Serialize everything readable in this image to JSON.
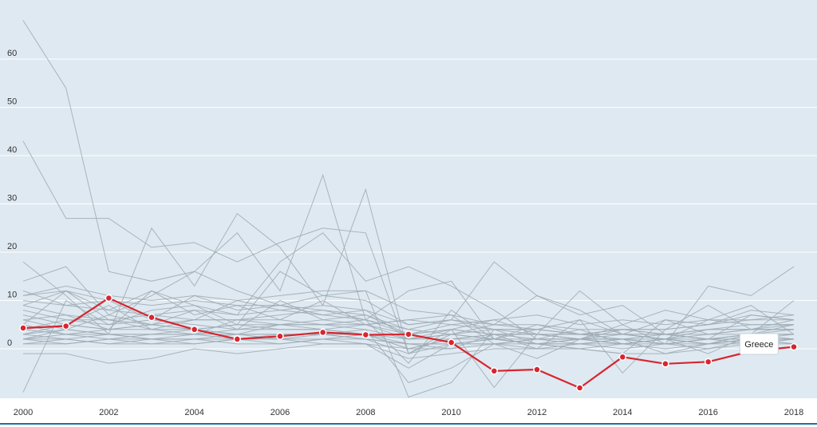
{
  "chart_data": {
    "type": "line",
    "title": "",
    "xlabel": "",
    "ylabel": "",
    "x": [
      2000,
      2001,
      2002,
      2003,
      2004,
      2005,
      2006,
      2007,
      2008,
      2009,
      2010,
      2011,
      2012,
      2013,
      2014,
      2015,
      2016,
      2017,
      2018
    ],
    "x_ticks": [
      "2000",
      "2002",
      "2004",
      "2006",
      "2008",
      "2010",
      "2012",
      "2014",
      "2016",
      "2018"
    ],
    "y_ticks": [
      "0",
      "10",
      "20",
      "30",
      "40",
      "50",
      "60"
    ],
    "ylim": [
      -11,
      72
    ],
    "grid": true,
    "highlight_series": {
      "name": "Greece",
      "values": [
        4.3,
        4.7,
        10.5,
        6.5,
        4.0,
        2.0,
        2.6,
        3.4,
        2.9,
        3.0,
        1.3,
        -4.6,
        -4.3,
        -8.1,
        -1.7,
        -3.1,
        -2.7,
        -0.5,
        0.4
      ]
    },
    "background_series": [
      {
        "values": [
          68,
          54,
          16,
          14,
          16,
          12,
          9,
          8,
          6,
          4,
          3,
          2,
          1,
          1,
          1,
          2,
          1,
          3,
          5
        ]
      },
      {
        "values": [
          43,
          27,
          27,
          21,
          22,
          18,
          22,
          25,
          24,
          -1,
          3,
          5,
          11,
          8,
          3,
          6,
          3,
          4,
          6
        ]
      },
      {
        "values": [
          18,
          11,
          3,
          25,
          13,
          28,
          21,
          9,
          33,
          -1,
          4,
          -8,
          3,
          12,
          5,
          1,
          13,
          11,
          17
        ]
      },
      {
        "values": [
          14,
          17,
          7,
          11,
          16,
          24,
          12,
          36,
          6,
          12,
          14,
          2,
          5,
          3,
          2,
          -1,
          1,
          3,
          10
        ]
      },
      {
        "values": [
          -9,
          10,
          5,
          8,
          9,
          7,
          18,
          24,
          14,
          17,
          13,
          8,
          2,
          4,
          1,
          2,
          6,
          9,
          3
        ]
      },
      {
        "values": [
          11,
          12,
          8,
          12,
          9,
          5,
          16,
          11,
          12,
          -10,
          -7,
          4,
          1,
          0,
          -1,
          6,
          5,
          8,
          7
        ]
      },
      {
        "values": [
          12,
          9,
          10,
          6,
          11,
          8,
          9,
          7,
          8,
          5,
          6,
          18,
          11,
          7,
          9,
          3,
          2,
          7,
          6
        ]
      },
      {
        "values": [
          9,
          7,
          4,
          12,
          7,
          9,
          6,
          10,
          5,
          6,
          7,
          1,
          -2,
          2,
          5,
          8,
          6,
          5,
          5
        ]
      },
      {
        "values": [
          7,
          5,
          9,
          4,
          6,
          10,
          8,
          7,
          6,
          -3,
          8,
          2,
          4,
          6,
          -5,
          4,
          9,
          4,
          4
        ]
      },
      {
        "values": [
          5,
          12,
          6,
          4,
          3,
          6,
          5,
          5,
          4,
          -7,
          -4,
          1,
          0,
          6,
          3,
          2,
          -1,
          3,
          2
        ]
      },
      {
        "values": [
          6,
          4,
          7,
          5,
          8,
          4,
          10,
          6,
          7,
          3,
          4,
          6,
          3,
          2,
          4,
          3,
          2,
          2,
          3
        ]
      },
      {
        "values": [
          3,
          2,
          3,
          2,
          2,
          3,
          2,
          2,
          3,
          0,
          2,
          2,
          2,
          1,
          2,
          1,
          2,
          2,
          2
        ]
      },
      {
        "values": [
          2,
          3,
          2,
          3,
          3,
          2,
          3,
          3,
          2,
          1,
          1,
          2,
          1,
          2,
          1,
          2,
          1,
          1,
          2
        ]
      },
      {
        "values": [
          1,
          2,
          1,
          2,
          1,
          2,
          2,
          1,
          1,
          0,
          0,
          3,
          0,
          1,
          0,
          1,
          0,
          2,
          1
        ]
      },
      {
        "values": [
          4,
          6,
          5,
          6,
          5,
          4,
          5,
          4,
          5,
          2,
          3,
          4,
          3,
          3,
          3,
          2,
          3,
          3,
          3
        ]
      },
      {
        "values": [
          2,
          1,
          2,
          1,
          2,
          1,
          1,
          2,
          2,
          -1,
          1,
          1,
          2,
          2,
          1,
          1,
          1,
          2,
          2
        ]
      },
      {
        "values": [
          -1,
          -1,
          -3,
          -2,
          0,
          -1,
          0,
          1,
          1,
          -2,
          -1,
          0,
          0,
          0,
          -1,
          -1,
          0,
          1,
          2
        ]
      },
      {
        "values": [
          8,
          6,
          6,
          7,
          6,
          6,
          7,
          8,
          7,
          4,
          6,
          5,
          4,
          3,
          4,
          4,
          5,
          6,
          7
        ]
      },
      {
        "values": [
          3,
          4,
          3,
          3,
          4,
          3,
          3,
          3,
          4,
          2,
          2,
          3,
          2,
          2,
          2,
          3,
          2,
          3,
          3
        ]
      },
      {
        "values": [
          5,
          3,
          4,
          4,
          4,
          5,
          4,
          4,
          3,
          1,
          0,
          1,
          1,
          1,
          2,
          1,
          2,
          3,
          4
        ]
      },
      {
        "values": [
          10,
          9,
          8,
          7,
          8,
          7,
          8,
          9,
          8,
          2,
          4,
          3,
          3,
          3,
          3,
          2,
          4,
          4,
          5
        ]
      },
      {
        "values": [
          2,
          2,
          1,
          1,
          1,
          2,
          1,
          2,
          1,
          -4,
          1,
          2,
          1,
          0,
          1,
          0,
          1,
          2,
          2
        ]
      },
      {
        "values": [
          6,
          7,
          6,
          5,
          6,
          6,
          6,
          5,
          6,
          3,
          5,
          6,
          7,
          5,
          6,
          5,
          6,
          6,
          6
        ]
      },
      {
        "values": [
          4,
          3,
          3,
          2,
          3,
          4,
          4,
          4,
          3,
          2,
          3,
          2,
          1,
          2,
          2,
          2,
          1,
          2,
          1
        ]
      },
      {
        "values": [
          3,
          5,
          4,
          5,
          4,
          3,
          5,
          6,
          5,
          3,
          4,
          3,
          3,
          2,
          3,
          3,
          3,
          4,
          4
        ]
      },
      {
        "values": [
          1,
          1,
          2,
          2,
          2,
          2,
          2,
          3,
          2,
          1,
          1,
          1,
          2,
          2,
          1,
          2,
          2,
          1,
          1
        ]
      },
      {
        "values": [
          9,
          12,
          10,
          9,
          10,
          9,
          9,
          11,
          10,
          5,
          6,
          4,
          4,
          3,
          3,
          3,
          4,
          5,
          5
        ]
      },
      {
        "values": [
          2,
          4,
          3,
          3,
          3,
          3,
          3,
          3,
          3,
          0,
          2,
          3,
          3,
          2,
          2,
          1,
          2,
          3,
          3
        ]
      },
      {
        "values": [
          11,
          13,
          11,
          10,
          11,
          10,
          11,
          12,
          12,
          8,
          7,
          5,
          5,
          4,
          4,
          4,
          5,
          7,
          6
        ]
      },
      {
        "values": [
          4,
          5,
          4,
          5,
          4,
          5,
          5,
          5,
          5,
          6,
          5,
          4,
          4,
          3,
          4,
          3,
          4,
          4,
          4
        ]
      }
    ],
    "tooltip": {
      "label": "Greece",
      "x": 2017
    }
  },
  "colors": {
    "background": "#dfe9f1",
    "gridline": "#ffffff",
    "background_line": "#9eaab4",
    "highlight": "#d7262f",
    "bottom_rule": "#1e6ea3"
  }
}
